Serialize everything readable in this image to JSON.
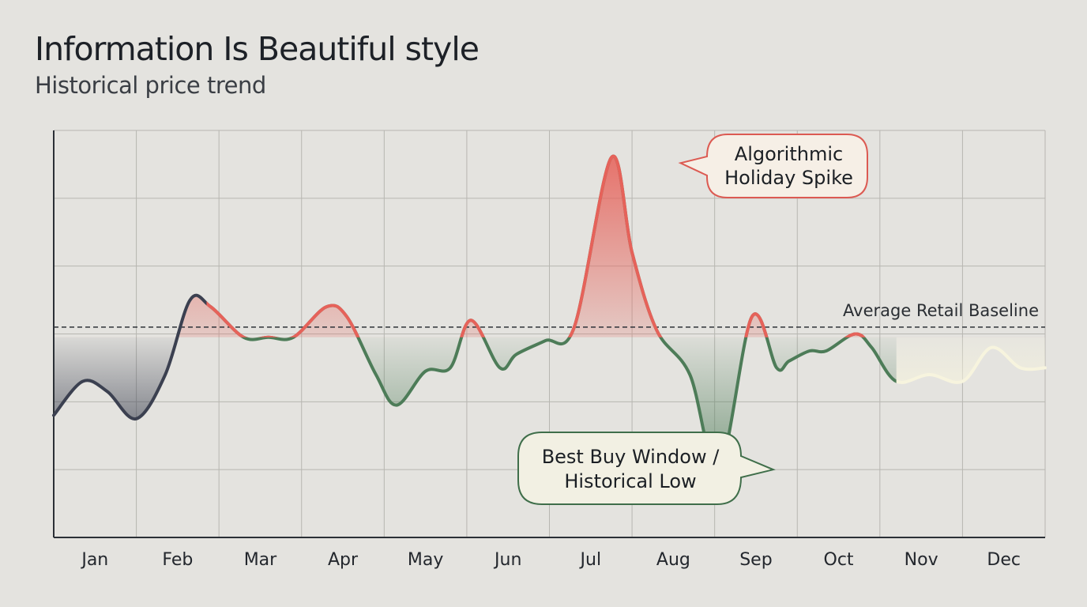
{
  "header": {
    "title": "Information Is Beautiful style",
    "subtitle": "Historical price trend"
  },
  "chart_data": {
    "type": "line",
    "title": "Information Is Beautiful style",
    "subtitle": "Historical price trend",
    "xlabel": "",
    "ylabel": "",
    "categories": [
      "Jan",
      "Feb",
      "Mar",
      "Apr",
      "May",
      "Jun",
      "Jul",
      "Aug",
      "Sep",
      "Oct",
      "Nov",
      "Dec"
    ],
    "x_range": [
      0,
      12
    ],
    "ylim": [
      0,
      6
    ],
    "baseline": {
      "value": 3.1,
      "label": "Average Retail Baseline"
    },
    "series": [
      {
        "x": [
          0,
          0.35,
          0.65,
          1.0,
          1.35,
          1.65,
          1.9,
          2.3,
          2.6,
          2.9,
          3.3,
          3.55,
          3.9,
          4.15,
          4.5,
          4.8,
          5.05,
          5.4,
          5.6,
          5.95,
          6.3,
          6.75,
          7.0,
          7.3,
          7.7,
          8.05,
          8.45,
          8.75,
          8.9,
          9.15,
          9.35,
          9.7,
          9.9,
          10.2,
          10.6,
          11.0,
          11.35,
          11.7,
          12.0
        ],
        "y": [
          1.8,
          2.3,
          2.15,
          1.75,
          2.4,
          3.5,
          3.4,
          2.95,
          2.95,
          2.95,
          3.4,
          3.25,
          2.4,
          1.95,
          2.45,
          2.5,
          3.2,
          2.5,
          2.7,
          2.9,
          3.1,
          5.6,
          4.2,
          3.05,
          2.4,
          1.0,
          3.25,
          2.5,
          2.6,
          2.75,
          2.75,
          3.0,
          2.8,
          2.3,
          2.4,
          2.3,
          2.8,
          2.5,
          2.5
        ]
      }
    ],
    "segment_colors": {
      "early": "#3b4050",
      "regular": "#4d7c58",
      "spike": "#e6625a",
      "forecast": "#f7f4de"
    },
    "annotations": [
      {
        "text": [
          "Algorithmic",
          "Holiday Spike"
        ],
        "point": {
          "x": 7.3,
          "y": 5.6
        }
      },
      {
        "text": [
          "Best Buy Window /",
          "Historical Low"
        ],
        "point": {
          "x": 8.9,
          "y": 1.0
        }
      }
    ],
    "grid": true,
    "legend": "none"
  }
}
